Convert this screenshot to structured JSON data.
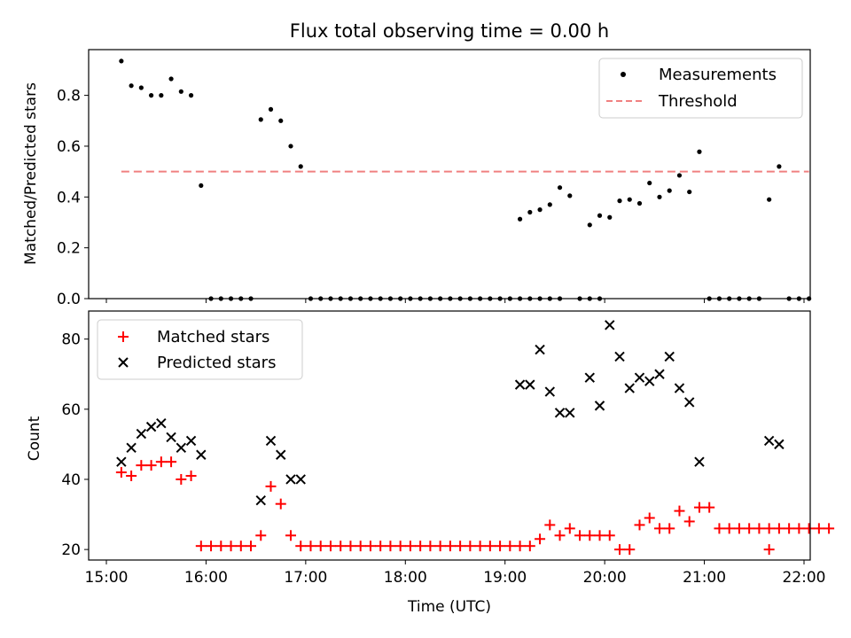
{
  "chart_data": [
    {
      "type": "scatter",
      "title": "Flux total observing time = 0.00 h",
      "xlabel": "",
      "ylabel": "Matched/Predicted stars",
      "xlim": [
        "15:00",
        "22:00"
      ],
      "ylim": [
        0,
        0.98
      ],
      "yticks": [
        "0.0",
        "0.2",
        "0.4",
        "0.6",
        "0.8"
      ],
      "legend_position": "top-right",
      "series": [
        {
          "name": "Measurements",
          "color": "#000000",
          "marker": "dot",
          "points": [
            [
              "15:09",
              0.935
            ],
            [
              "15:15",
              0.838
            ],
            [
              "15:21",
              0.83
            ],
            [
              "15:27",
              0.8
            ],
            [
              "15:33",
              0.8
            ],
            [
              "15:39",
              0.865
            ],
            [
              "15:45",
              0.815
            ],
            [
              "15:51",
              0.8
            ],
            [
              "15:57",
              0.445
            ],
            [
              "16:03",
              0.0
            ],
            [
              "16:09",
              0.0
            ],
            [
              "16:15",
              0.0
            ],
            [
              "16:21",
              0.0
            ],
            [
              "16:27",
              0.0
            ],
            [
              "16:33",
              0.705
            ],
            [
              "16:39",
              0.745
            ],
            [
              "16:45",
              0.7
            ],
            [
              "16:51",
              0.6
            ],
            [
              "16:57",
              0.52
            ],
            [
              "17:03",
              0.0
            ],
            [
              "17:09",
              0.0
            ],
            [
              "17:15",
              0.0
            ],
            [
              "17:21",
              0.0
            ],
            [
              "17:27",
              0.0
            ],
            [
              "17:33",
              0.0
            ],
            [
              "17:39",
              0.0
            ],
            [
              "17:45",
              0.0
            ],
            [
              "17:51",
              0.0
            ],
            [
              "17:57",
              0.0
            ],
            [
              "18:03",
              0.0
            ],
            [
              "18:09",
              0.0
            ],
            [
              "18:15",
              0.0
            ],
            [
              "18:21",
              0.0
            ],
            [
              "18:27",
              0.0
            ],
            [
              "18:33",
              0.0
            ],
            [
              "18:39",
              0.0
            ],
            [
              "18:45",
              0.0
            ],
            [
              "18:51",
              0.0
            ],
            [
              "18:57",
              0.0
            ],
            [
              "19:03",
              0.0
            ],
            [
              "19:09",
              0.0
            ],
            [
              "19:15",
              0.0
            ],
            [
              "19:21",
              0.0
            ],
            [
              "19:27",
              0.0
            ],
            [
              "19:33",
              0.0
            ],
            [
              "19:09",
              0.313
            ],
            [
              "19:15",
              0.34
            ],
            [
              "19:21",
              0.35
            ],
            [
              "19:27",
              0.37
            ],
            [
              "19:33",
              0.437
            ],
            [
              "19:39",
              0.405
            ],
            [
              "19:45",
              0.0
            ],
            [
              "19:51",
              0.0
            ],
            [
              "19:57",
              0.0
            ],
            [
              "19:51",
              0.29
            ],
            [
              "19:57",
              0.327
            ],
            [
              "20:03",
              0.32
            ],
            [
              "20:09",
              0.385
            ],
            [
              "20:15",
              0.39
            ],
            [
              "20:21",
              0.375
            ],
            [
              "20:27",
              0.455
            ],
            [
              "20:33",
              0.4
            ],
            [
              "20:39",
              0.425
            ],
            [
              "20:45",
              0.485
            ],
            [
              "20:51",
              0.42
            ],
            [
              "20:57",
              0.578
            ],
            [
              "21:03",
              0.0
            ],
            [
              "21:09",
              0.0
            ],
            [
              "21:15",
              0.0
            ],
            [
              "21:21",
              0.0
            ],
            [
              "21:27",
              0.0
            ],
            [
              "21:33",
              0.0
            ],
            [
              "21:39",
              0.39
            ],
            [
              "21:45",
              0.52
            ],
            [
              "21:51",
              0.0
            ],
            [
              "21:57",
              0.0
            ],
            [
              "22:03",
              0.0
            ]
          ]
        },
        {
          "name": "Threshold",
          "color": "#f08080",
          "line": "dashed",
          "points": [
            [
              "15:09",
              0.5
            ],
            [
              "22:03",
              0.5
            ]
          ]
        }
      ]
    },
    {
      "type": "scatter",
      "title": "",
      "xlabel": "Time (UTC)",
      "ylabel": "Count",
      "xlim": [
        "15:00",
        "22:00"
      ],
      "ylim": [
        17,
        88
      ],
      "xticks": [
        "15:00",
        "16:00",
        "17:00",
        "18:00",
        "19:00",
        "20:00",
        "21:00",
        "22:00"
      ],
      "yticks": [
        "20",
        "40",
        "60",
        "80"
      ],
      "legend_position": "top-left",
      "series": [
        {
          "name": "Matched stars",
          "color": "#ff0000",
          "marker": "plus",
          "points": [
            [
              "15:09",
              42
            ],
            [
              "15:15",
              41
            ],
            [
              "15:21",
              44
            ],
            [
              "15:27",
              44
            ],
            [
              "15:33",
              45
            ],
            [
              "15:39",
              45
            ],
            [
              "15:45",
              40
            ],
            [
              "15:51",
              41
            ],
            [
              "15:57",
              21
            ],
            [
              "16:03",
              21
            ],
            [
              "16:09",
              21
            ],
            [
              "16:15",
              21
            ],
            [
              "16:21",
              21
            ],
            [
              "16:27",
              21
            ],
            [
              "16:33",
              24
            ],
            [
              "16:39",
              38
            ],
            [
              "16:45",
              33
            ],
            [
              "16:51",
              24
            ],
            [
              "16:57",
              21
            ],
            [
              "17:03",
              21
            ],
            [
              "17:09",
              21
            ],
            [
              "17:15",
              21
            ],
            [
              "17:21",
              21
            ],
            [
              "17:27",
              21
            ],
            [
              "17:33",
              21
            ],
            [
              "17:39",
              21
            ],
            [
              "17:45",
              21
            ],
            [
              "17:51",
              21
            ],
            [
              "17:57",
              21
            ],
            [
              "18:03",
              21
            ],
            [
              "18:09",
              21
            ],
            [
              "18:15",
              21
            ],
            [
              "18:21",
              21
            ],
            [
              "18:27",
              21
            ],
            [
              "18:33",
              21
            ],
            [
              "18:39",
              21
            ],
            [
              "18:45",
              21
            ],
            [
              "18:51",
              21
            ],
            [
              "18:57",
              21
            ],
            [
              "19:03",
              21
            ],
            [
              "19:09",
              21
            ],
            [
              "19:15",
              21
            ],
            [
              "19:21",
              23
            ],
            [
              "19:27",
              27
            ],
            [
              "19:33",
              24
            ],
            [
              "19:39",
              26
            ],
            [
              "19:45",
              24
            ],
            [
              "19:51",
              24
            ],
            [
              "19:57",
              24
            ],
            [
              "20:03",
              24
            ],
            [
              "20:09",
              20
            ],
            [
              "20:15",
              20
            ],
            [
              "20:21",
              27
            ],
            [
              "20:27",
              29
            ],
            [
              "20:33",
              26
            ],
            [
              "20:39",
              26
            ],
            [
              "20:45",
              31
            ],
            [
              "20:51",
              28
            ],
            [
              "20:57",
              32
            ],
            [
              "21:03",
              32
            ],
            [
              "21:09",
              26
            ],
            [
              "21:15",
              26
            ],
            [
              "21:21",
              26
            ],
            [
              "21:27",
              26
            ],
            [
              "21:33",
              26
            ],
            [
              "21:39",
              26
            ],
            [
              "21:45",
              26
            ],
            [
              "21:51",
              26
            ],
            [
              "21:39",
              20
            ],
            [
              "21:57",
              26
            ],
            [
              "22:03",
              26
            ],
            [
              "22:09",
              26
            ],
            [
              "22:15",
              26
            ]
          ]
        },
        {
          "name": "Predicted stars",
          "color": "#000000",
          "marker": "x",
          "points": [
            [
              "15:09",
              45
            ],
            [
              "15:15",
              49
            ],
            [
              "15:21",
              53
            ],
            [
              "15:27",
              55
            ],
            [
              "15:33",
              56
            ],
            [
              "15:39",
              52
            ],
            [
              "15:45",
              49
            ],
            [
              "15:51",
              51
            ],
            [
              "15:57",
              47
            ],
            [
              "16:33",
              34
            ],
            [
              "16:39",
              51
            ],
            [
              "16:45",
              47
            ],
            [
              "16:51",
              40
            ],
            [
              "16:57",
              40
            ],
            [
              "19:09",
              67
            ],
            [
              "19:15",
              67
            ],
            [
              "19:21",
              77
            ],
            [
              "19:27",
              65
            ],
            [
              "19:33",
              59
            ],
            [
              "19:39",
              59
            ],
            [
              "19:51",
              69
            ],
            [
              "19:57",
              61
            ],
            [
              "20:03",
              84
            ],
            [
              "20:09",
              75
            ],
            [
              "20:15",
              66
            ],
            [
              "20:21",
              69
            ],
            [
              "20:27",
              68
            ],
            [
              "20:33",
              70
            ],
            [
              "20:39",
              75
            ],
            [
              "20:45",
              66
            ],
            [
              "20:51",
              62
            ],
            [
              "20:57",
              45
            ],
            [
              "21:39",
              51
            ],
            [
              "21:45",
              50
            ]
          ]
        }
      ]
    }
  ]
}
